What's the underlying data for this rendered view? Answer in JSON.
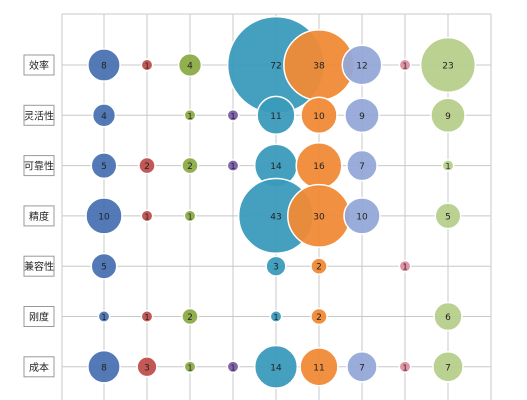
{
  "chart_data": {
    "type": "bubble",
    "categories": [
      "效率",
      "灵活性",
      "可靠性",
      "精度",
      "兼容性",
      "刚度",
      "成本"
    ],
    "series": [
      {
        "color": "#4a72b2",
        "values": [
          8,
          4,
          5,
          10,
          5,
          1,
          8
        ]
      },
      {
        "color": "#c0504d",
        "values": [
          1,
          null,
          2,
          1,
          null,
          1,
          3
        ]
      },
      {
        "color": "#8cac47",
        "values": [
          4,
          1,
          2,
          1,
          null,
          2,
          1
        ]
      },
      {
        "color": "#7b5ea7",
        "values": [
          null,
          1,
          1,
          null,
          null,
          null,
          1
        ]
      },
      {
        "color": "#3a9bbb",
        "values": [
          72,
          11,
          14,
          43,
          3,
          1,
          14
        ]
      },
      {
        "color": "#f08a36",
        "values": [
          38,
          10,
          16,
          30,
          2,
          2,
          11
        ]
      },
      {
        "color": "#94a8d8",
        "values": [
          12,
          9,
          7,
          10,
          null,
          null,
          7
        ]
      },
      {
        "color": "#df8fa2",
        "values": [
          1,
          null,
          null,
          null,
          1,
          null,
          1
        ]
      },
      {
        "color": "#b7cf8b",
        "values": [
          23,
          9,
          1,
          5,
          null,
          6,
          7
        ]
      }
    ]
  }
}
